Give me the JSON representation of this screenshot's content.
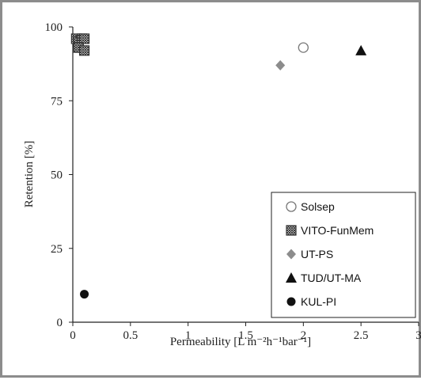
{
  "chart_data": {
    "type": "scatter",
    "xlabel": "Permeability  [L m⁻²h⁻¹bar⁻¹]",
    "ylabel": "Retention [%]",
    "xlim": [
      0,
      3
    ],
    "ylim": [
      0,
      100
    ],
    "x_ticks": [
      "0",
      "0.5",
      "1",
      "1.5",
      "2",
      "2.5",
      "3"
    ],
    "y_ticks": [
      "0",
      "25",
      "50",
      "75",
      "100"
    ],
    "x_tick_values": [
      0,
      0.5,
      1,
      1.5,
      2,
      2.5,
      3
    ],
    "y_tick_values": [
      0,
      25,
      50,
      75,
      100
    ],
    "grid": false,
    "legend_position": "bottom-right",
    "series": [
      {
        "name": "Solsep",
        "marker": "open-circle",
        "color": "#777777",
        "points": [
          {
            "x": 2.0,
            "y": 93
          }
        ]
      },
      {
        "name": "VITO-FunMem",
        "marker": "hatched-square",
        "color": "#333333",
        "points": [
          {
            "x": 0.03,
            "y": 96
          },
          {
            "x": 0.05,
            "y": 95
          },
          {
            "x": 0.08,
            "y": 96
          },
          {
            "x": 0.1,
            "y": 96
          },
          {
            "x": 0.05,
            "y": 93
          },
          {
            "x": 0.1,
            "y": 92
          }
        ]
      },
      {
        "name": "UT-PS",
        "marker": "diamond",
        "color": "#8c8c8c",
        "points": [
          {
            "x": 1.8,
            "y": 87
          }
        ]
      },
      {
        "name": "TUD/UT-MA",
        "marker": "triangle",
        "color": "#111111",
        "points": [
          {
            "x": 2.5,
            "y": 92
          }
        ]
      },
      {
        "name": "KUL-PI",
        "marker": "filled-circle",
        "color": "#111111",
        "points": [
          {
            "x": 0.1,
            "y": 9.5
          }
        ]
      }
    ]
  }
}
